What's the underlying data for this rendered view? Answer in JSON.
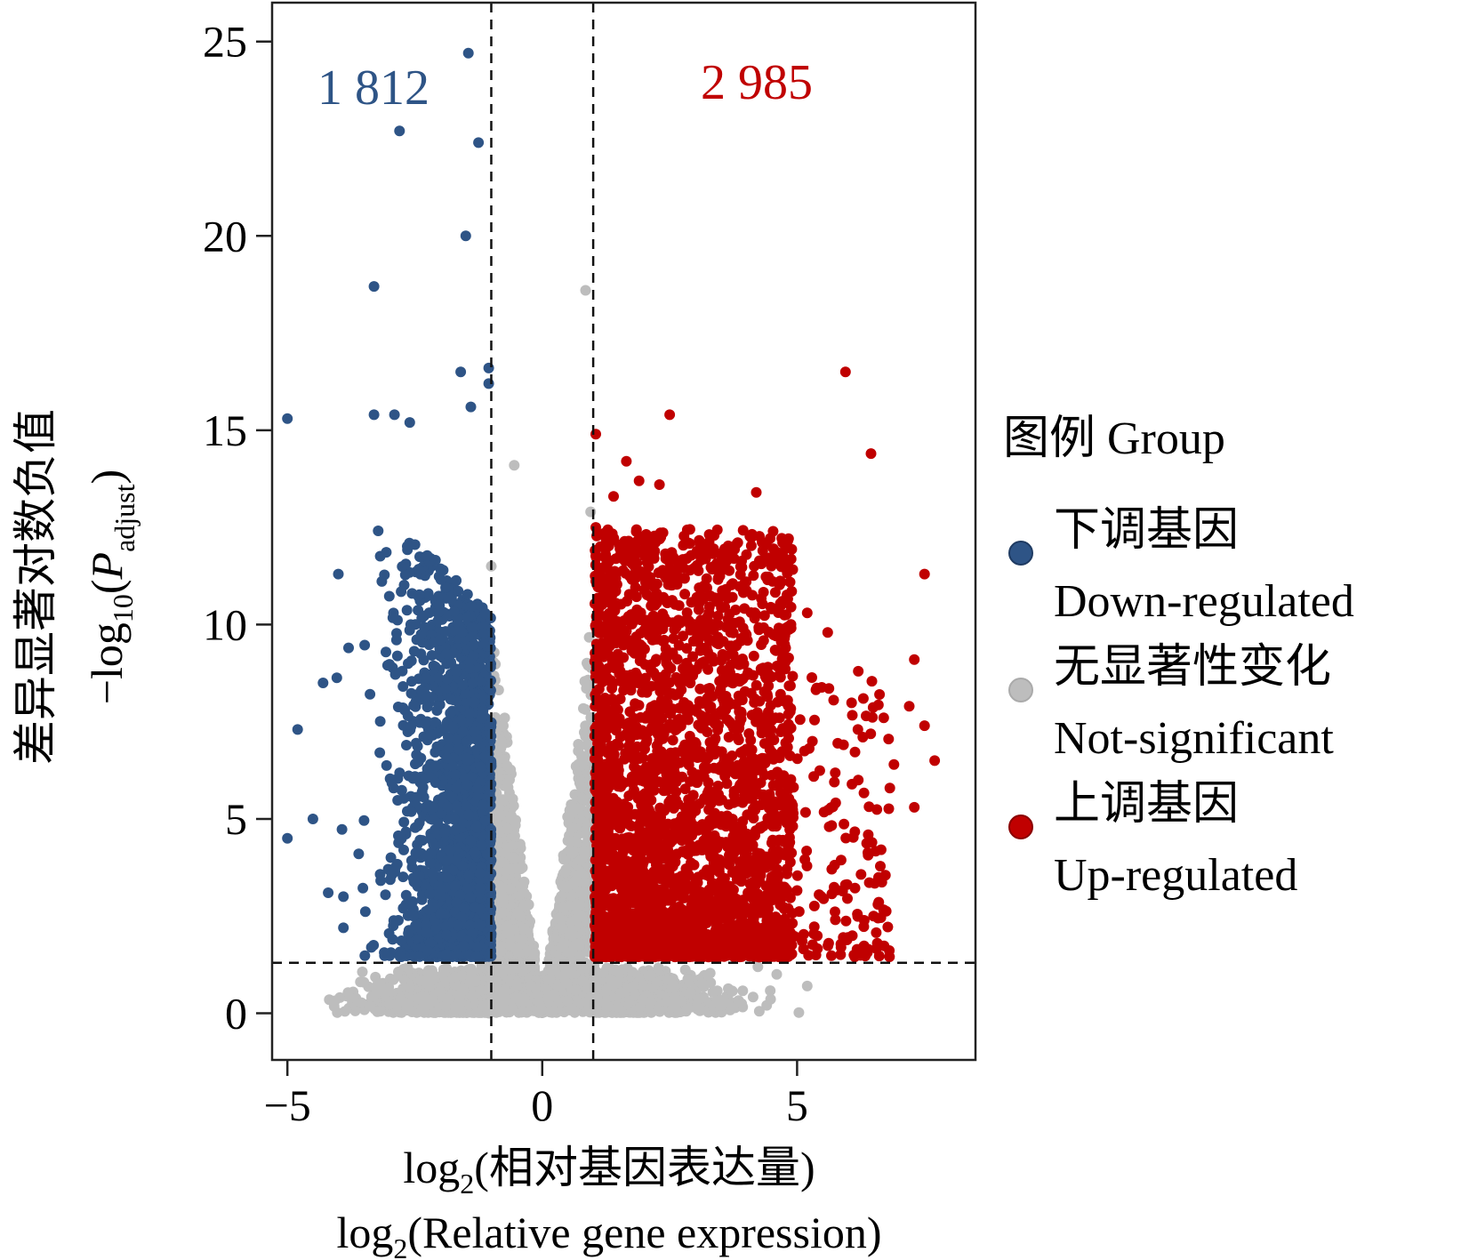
{
  "chart_data": {
    "type": "scatter",
    "subtype": "volcano",
    "xlabel_lines": [
      "log",
      "2",
      "(相对基因表达量)",
      "log",
      "2",
      "(Relative gene expression)"
    ],
    "ylabel_cn": "差异显著对数负值",
    "ylabel_en": {
      "prefix": "−log",
      "sub1": "10",
      "open": "(",
      "italic": "P",
      "sub2": "adjust",
      "close": ")"
    },
    "xlim": [
      -5.3,
      8.5
    ],
    "ylim": [
      -1.2,
      26.0
    ],
    "xticks": [
      -5,
      0,
      5
    ],
    "xtick_labels": [
      "−5",
      "0",
      "5"
    ],
    "yticks": [
      0,
      5,
      10,
      15,
      20,
      25
    ],
    "ytick_labels": [
      "0",
      "5",
      "10",
      "15",
      "20",
      "25"
    ],
    "thresholds": {
      "log2fc": [
        -1,
        1
      ],
      "neg_log10_p": 1.3
    },
    "grid": false,
    "counts": {
      "down": "1 812",
      "up": "2 985"
    },
    "legend": {
      "placement": "right",
      "title": "图例 Group",
      "entries": [
        {
          "cn": "下调基因",
          "en": "Down-regulated",
          "color": "#2e5486"
        },
        {
          "cn": "无显著性变化",
          "en": "Not-significant",
          "color": "#bdbdbd"
        },
        {
          "cn": "上调基因",
          "en": "Up-regulated",
          "color": "#c00000"
        }
      ]
    },
    "series": [
      {
        "name": "Down-regulated",
        "color": "#2e5486",
        "count": 1812,
        "highlight_points": [
          [
            -1.45,
            24.7
          ],
          [
            -2.8,
            22.7
          ],
          [
            -1.25,
            22.4
          ],
          [
            -1.5,
            20.0
          ],
          [
            -3.3,
            18.7
          ],
          [
            -1.6,
            16.5
          ],
          [
            -1.05,
            16.6
          ],
          [
            -1.05,
            16.2
          ],
          [
            -5.0,
            15.3
          ],
          [
            -3.3,
            15.4
          ],
          [
            -2.9,
            15.4
          ],
          [
            -2.6,
            15.2
          ],
          [
            -1.4,
            15.6
          ],
          [
            -4.0,
            11.3
          ],
          [
            -4.3,
            8.5
          ],
          [
            -4.8,
            7.3
          ],
          [
            -3.8,
            9.4
          ],
          [
            -4.5,
            5.0
          ],
          [
            -5.0,
            4.5
          ],
          [
            -3.9,
            3.0
          ],
          [
            -4.2,
            3.1
          ],
          [
            -3.6,
            4.1
          ],
          [
            -3.9,
            2.2
          ]
        ]
      },
      {
        "name": "Not-significant",
        "color": "#bdbdbd",
        "highlight_points": [
          [
            0.85,
            18.6
          ],
          [
            -0.55,
            14.1
          ],
          [
            -1.0,
            11.5
          ],
          [
            0.95,
            12.9
          ],
          [
            4.6,
            1.0
          ],
          [
            5.2,
            0.7
          ],
          [
            -3.5,
            0.8
          ],
          [
            -0.2,
            1.2
          ],
          [
            0.2,
            1.1
          ]
        ]
      },
      {
        "name": "Up-regulated",
        "color": "#c00000",
        "count": 2985,
        "highlight_points": [
          [
            5.95,
            16.5
          ],
          [
            2.5,
            15.4
          ],
          [
            1.05,
            14.9
          ],
          [
            6.45,
            14.4
          ],
          [
            1.65,
            14.2
          ],
          [
            1.9,
            13.7
          ],
          [
            2.3,
            13.6
          ],
          [
            4.2,
            13.4
          ],
          [
            1.4,
            13.3
          ],
          [
            1.05,
            12.5
          ],
          [
            7.5,
            11.3
          ],
          [
            4.0,
            11.1
          ],
          [
            4.5,
            10.4
          ],
          [
            5.2,
            10.3
          ],
          [
            5.6,
            9.8
          ],
          [
            6.2,
            8.8
          ],
          [
            7.3,
            9.1
          ],
          [
            6.3,
            8.1
          ],
          [
            7.2,
            7.9
          ],
          [
            7.5,
            7.4
          ],
          [
            7.7,
            6.5
          ],
          [
            7.3,
            5.3
          ],
          [
            6.7,
            7.6
          ],
          [
            6.5,
            2.5
          ],
          [
            6.9,
            6.4
          ],
          [
            6.2,
            6.0
          ],
          [
            5.3,
            7.0
          ]
        ]
      }
    ]
  }
}
